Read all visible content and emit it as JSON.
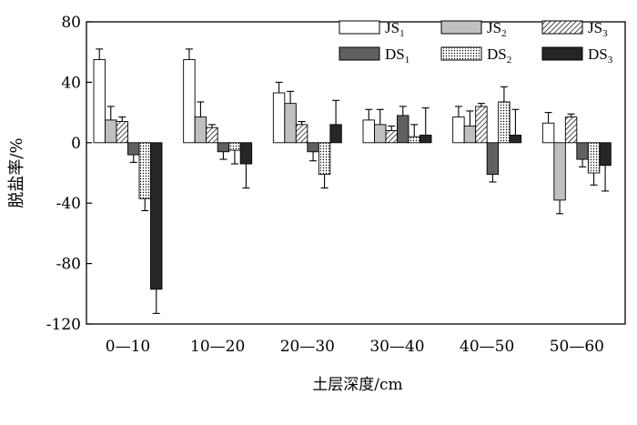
{
  "chart_data": {
    "type": "bar",
    "categories": [
      "0—10",
      "10—20",
      "20—30",
      "30—40",
      "40—50",
      "50—60"
    ],
    "xlabel": "土层深度/cm",
    "ylabel": "脱盐率/%",
    "ylim": [
      -120,
      80
    ],
    "yticks": [
      -120,
      -80,
      -40,
      0,
      40,
      80
    ],
    "grid": false,
    "legend_position": "top-right",
    "error_bars": true,
    "series": [
      {
        "name": "JS",
        "sub": "1",
        "fill": "white",
        "values": [
          55,
          55,
          33,
          15,
          17,
          13
        ],
        "errors": [
          7,
          7,
          7,
          7,
          7,
          7
        ]
      },
      {
        "name": "JS",
        "sub": "2",
        "fill": "lightgray",
        "values": [
          15,
          17,
          26,
          12,
          11,
          -38
        ],
        "errors": [
          9,
          10,
          8,
          10,
          10,
          9
        ]
      },
      {
        "name": "JS",
        "sub": "3",
        "fill": "hatch",
        "values": [
          14,
          10,
          12,
          8,
          24,
          17
        ],
        "errors": [
          3,
          2,
          2,
          3,
          2,
          2
        ]
      },
      {
        "name": "DS",
        "sub": "1",
        "fill": "darkgray",
        "values": [
          -8,
          -6,
          -6,
          18,
          -21,
          -11
        ],
        "errors": [
          5,
          5,
          6,
          6,
          5,
          5
        ]
      },
      {
        "name": "DS",
        "sub": "2",
        "fill": "dots",
        "values": [
          -37,
          -5,
          -21,
          4,
          27,
          -20
        ],
        "errors": [
          8,
          9,
          9,
          8,
          10,
          8
        ]
      },
      {
        "name": "DS",
        "sub": "3",
        "fill": "black",
        "values": [
          -97,
          -14,
          12,
          5,
          5,
          -15
        ],
        "errors": [
          16,
          16,
          16,
          18,
          17,
          17
        ]
      }
    ],
    "colors": {
      "lightgray": "#c0c0c0",
      "darkgray": "#606060",
      "black": "#262626",
      "stroke": "#000000"
    }
  }
}
